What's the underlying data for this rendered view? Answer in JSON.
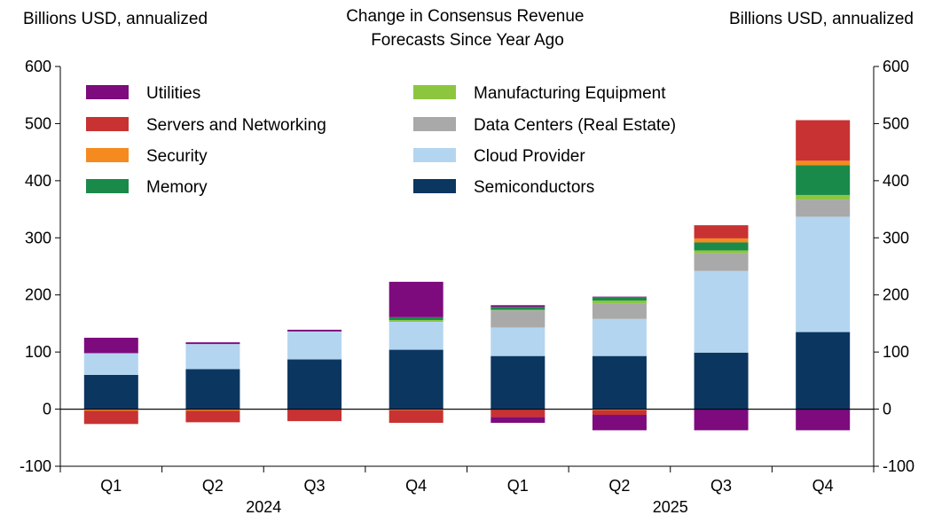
{
  "chart_data": {
    "type": "bar",
    "stacked": true,
    "title": "Change in Consensus Revenue\nForecasts Since Year Ago",
    "ylabel_left": "Billions USD, annualized",
    "ylabel_right": "Billions USD, annualized",
    "ylim": [
      -100,
      600
    ],
    "yticks": [
      -100,
      0,
      100,
      200,
      300,
      400,
      500,
      600
    ],
    "categories": [
      "Q1",
      "Q2",
      "Q3",
      "Q4",
      "Q1",
      "Q2",
      "Q3",
      "Q4"
    ],
    "year_groups": [
      {
        "label": "2024",
        "start": 0,
        "end": 3
      },
      {
        "label": "2025",
        "start": 4,
        "end": 7
      }
    ],
    "legend_placement": "top-left",
    "series": [
      {
        "name": "Semiconductors",
        "color": "#0b3660",
        "values": [
          60,
          70,
          87,
          104,
          93,
          93,
          99,
          135
        ]
      },
      {
        "name": "Cloud Provider",
        "color": "#b3d5f0",
        "values": [
          38,
          44,
          49,
          49,
          50,
          65,
          143,
          202
        ]
      },
      {
        "name": "Data Centers (Real Estate)",
        "color": "#a9a9a9",
        "values": [
          0,
          0,
          0,
          0,
          30,
          27,
          31,
          30
        ]
      },
      {
        "name": "Manufacturing Equipment",
        "color": "#8cc63f",
        "values": [
          0,
          0,
          0,
          3,
          1,
          5,
          5,
          8
        ]
      },
      {
        "name": "Memory",
        "color": "#1a8a4a",
        "values": [
          0,
          0,
          0,
          5,
          5,
          6,
          14,
          52
        ]
      },
      {
        "name": "Security",
        "color": "#f58a1f",
        "values": [
          0,
          0,
          0,
          0,
          0,
          0,
          7,
          8
        ]
      },
      {
        "name": "Servers and Networking",
        "color": "#c83232",
        "values": [
          0,
          -2,
          -2,
          0,
          -16,
          -10,
          23,
          71
        ]
      },
      {
        "name": "Utilities",
        "color": "#7d0b7d",
        "values": [
          27,
          3,
          3,
          62,
          3,
          1,
          0,
          0
        ]
      }
    ],
    "series_negative": [
      {
        "name": "Security",
        "color": "#f58a1f",
        "values": [
          -3,
          -3,
          0,
          -2,
          0,
          -2,
          0,
          0
        ]
      },
      {
        "name": "Servers and Networking",
        "color": "#c83232",
        "values": [
          -23,
          -20,
          -21,
          -22,
          -14,
          -8,
          0,
          0
        ]
      },
      {
        "name": "Utilities",
        "color": "#7d0b7d",
        "values": [
          0,
          0,
          0,
          0,
          -10,
          -27,
          -37,
          -37
        ]
      }
    ],
    "legend": [
      {
        "name": "Utilities",
        "color": "#7d0b7d"
      },
      {
        "name": "Servers and Networking",
        "color": "#c83232"
      },
      {
        "name": "Security",
        "color": "#f58a1f"
      },
      {
        "name": "Memory",
        "color": "#1a8a4a"
      },
      {
        "name": "Manufacturing Equipment",
        "color": "#8cc63f"
      },
      {
        "name": "Data Centers (Real Estate)",
        "color": "#a9a9a9"
      },
      {
        "name": "Cloud Provider",
        "color": "#b3d5f0"
      },
      {
        "name": "Semiconductors",
        "color": "#0b3660"
      }
    ]
  }
}
